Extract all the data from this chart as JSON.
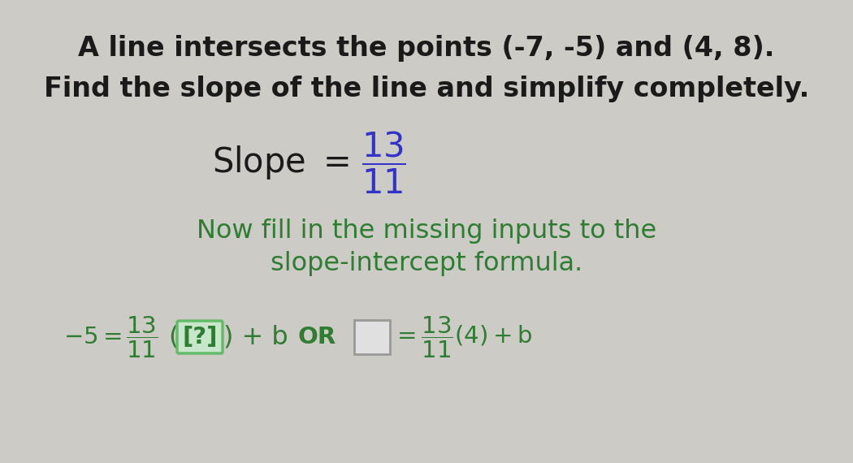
{
  "bg_color": "#cccbc5",
  "title_line1": "A line intersects the points (-7, -5) and (4, 8).",
  "title_line2": "Find the slope of the line and simplify completely.",
  "title_color": "#1a1a1a",
  "title_fontsize": 24,
  "slope_color_label": "#1a1a1a",
  "slope_color_fraction": "#3333cc",
  "slope_fontsize": 30,
  "fill_in_line1": "Now fill in the missing inputs to the",
  "fill_in_line2": "slope-intercept formula.",
  "fill_in_color": "#2e7d32",
  "fill_in_fontsize": 23,
  "formula_color": "#2e7d32",
  "formula_fontsize": 21,
  "box_green_color": "#66bb6a",
  "box_green_fill": "#c8e6c9",
  "box_gray_color": "#999999",
  "box_gray_fill": "#e0e0e0"
}
